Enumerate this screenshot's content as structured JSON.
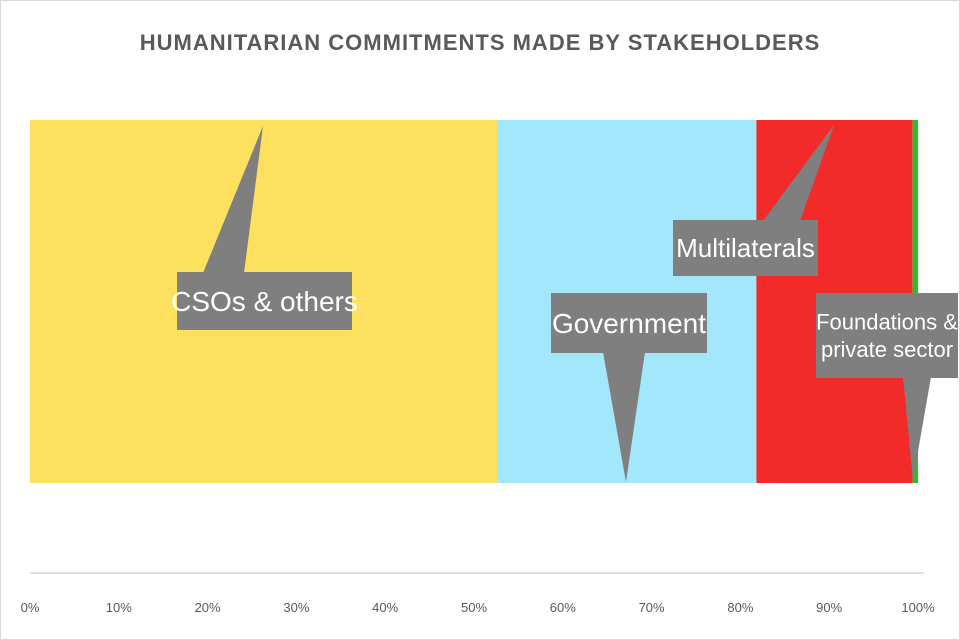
{
  "chart_data": {
    "type": "bar",
    "orientation": "horizontal",
    "stacked": true,
    "percent_stacked": true,
    "title": "HUMANITARIAN COMMITMENTS MADE BY STAKEHOLDERS",
    "xlabel": "",
    "ylabel": "",
    "xlim": [
      0,
      100
    ],
    "x_ticks": [
      "0%",
      "10%",
      "20%",
      "30%",
      "40%",
      "50%",
      "60%",
      "70%",
      "80%",
      "90%",
      "100%"
    ],
    "grid": false,
    "series": [
      {
        "name": "CSOs & others",
        "value": 52.7,
        "color": "#fde05e"
      },
      {
        "name": "Government",
        "value": 29.1,
        "color": "#a3e7fc"
      },
      {
        "name": "Multilaterals",
        "value": 17.6,
        "color": "#f22a2a"
      },
      {
        "name": "Foundations & private sector",
        "value": 0.8,
        "color": "#2bbd2b"
      }
    ],
    "callouts": [
      {
        "series": "CSOs & others",
        "lines": [
          "CSOs & others"
        ]
      },
      {
        "series": "Government",
        "lines": [
          "Government"
        ]
      },
      {
        "series": "Multilaterals",
        "lines": [
          "Multilaterals"
        ]
      },
      {
        "series": "Foundations & private sector",
        "lines": [
          "Foundations &",
          "private sector"
        ]
      }
    ],
    "callout_color": "#7f7f7f"
  }
}
